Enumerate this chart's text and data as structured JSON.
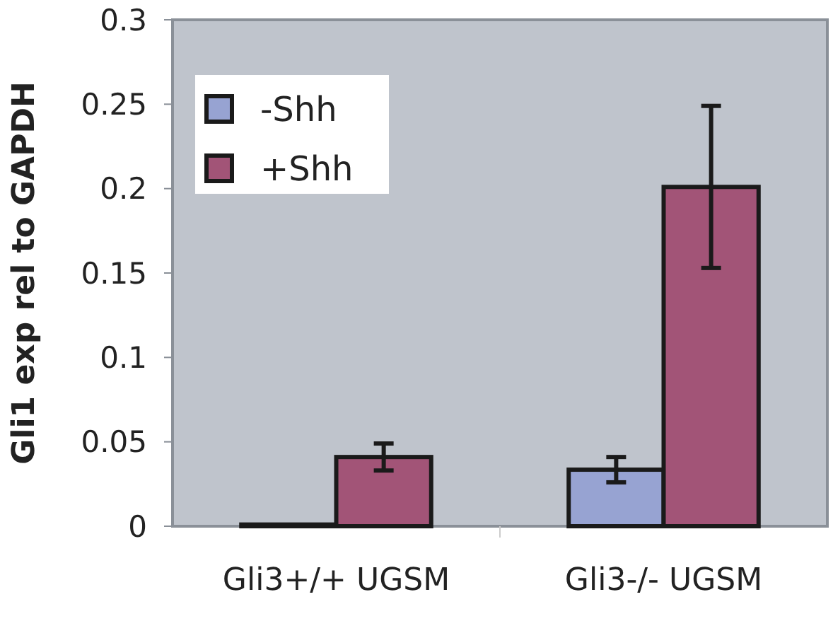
{
  "chart_data": {
    "type": "bar",
    "ylabel": "Gli1 exp rel to GAPDH",
    "categories": [
      "Gli3+/+ UGSM",
      "Gli3-/- UGSM"
    ],
    "series": [
      {
        "name": "-Shh",
        "color": "#97a3d2",
        "values": [
          0.001,
          0.0335
        ],
        "errors": [
          null,
          0.0075
        ]
      },
      {
        "name": "+Shh",
        "color": "#a25477",
        "values": [
          0.041,
          0.201
        ],
        "errors": [
          0.008,
          0.048
        ]
      }
    ],
    "ylim": [
      0,
      0.3
    ],
    "yticks": [
      0,
      0.05,
      0.1,
      0.15,
      0.2,
      0.25,
      0.3
    ],
    "grid": false,
    "legend": "top left"
  }
}
